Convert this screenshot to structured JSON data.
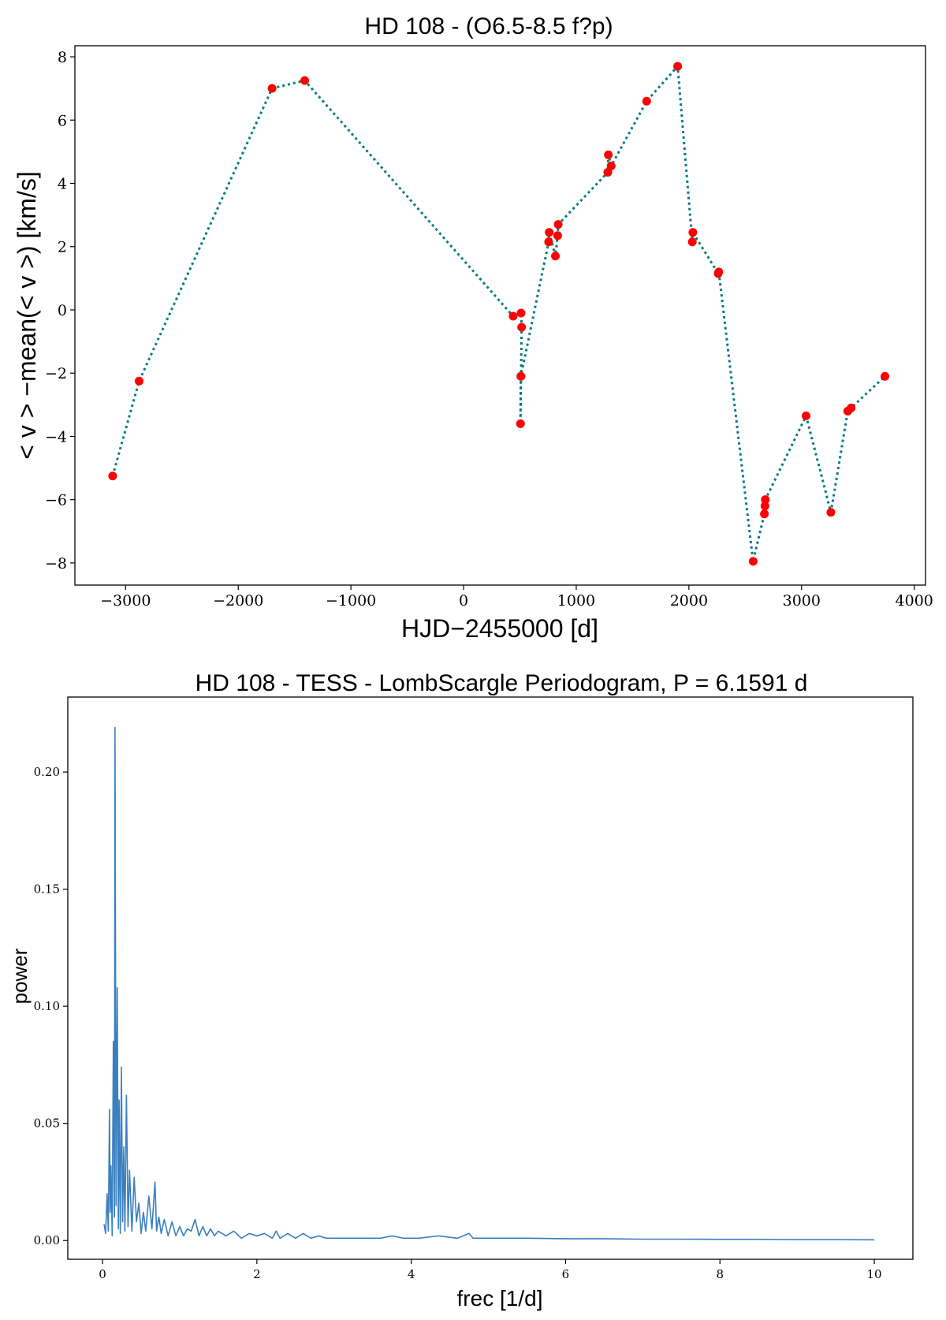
{
  "chart_data": [
    {
      "type": "line",
      "title": "HD 108 - (O6.5-8.5 f?p)",
      "xlabel": "HJD−2455000 [d]",
      "ylabel": "< v > −mean(< v >) [km/s]",
      "xlim": [
        -3450,
        4100
      ],
      "ylim": [
        -8.7,
        8.35
      ],
      "xticks": [
        -3000,
        -2000,
        -1000,
        0,
        1000,
        2000,
        3000,
        4000
      ],
      "xtick_labels": [
        "−3000",
        "−2000",
        "−1000",
        "0",
        "1000",
        "2000",
        "3000",
        "4000"
      ],
      "yticks": [
        -8,
        -6,
        -4,
        -2,
        0,
        2,
        4,
        6,
        8
      ],
      "ytick_labels": [
        "−8",
        "−6",
        "−4",
        "−2",
        "0",
        "2",
        "4",
        "6",
        "8"
      ],
      "grid": false,
      "line_style": "dotted",
      "line_color": "#007b82",
      "marker_color": "#ff0000",
      "series": [
        {
          "x": [
            -3115,
            -2880,
            -1700,
            -1410,
            440,
            510,
            515,
            510,
            505,
            508,
            755,
            760,
            815,
            835,
            840,
            1280,
            1285,
            1310,
            1625,
            1900,
            2030,
            2035,
            2260,
            2265,
            2570,
            2670,
            2675,
            2678,
            3040,
            3260,
            3410,
            3440,
            3740
          ],
          "y": [
            -5.25,
            -2.25,
            7.0,
            7.25,
            -0.2,
            -0.1,
            -0.55,
            -2.1,
            -3.6,
            -2.1,
            2.15,
            2.45,
            1.7,
            2.35,
            2.7,
            4.35,
            4.9,
            4.55,
            6.6,
            7.7,
            2.15,
            2.45,
            1.15,
            1.2,
            -7.95,
            -6.45,
            -6.2,
            -6.0,
            -3.35,
            -6.4,
            -3.2,
            -3.1,
            -2.1
          ]
        }
      ]
    },
    {
      "type": "line",
      "title": "HD 108 - TESS - LombScargle Periodogram, P = 6.1591 d",
      "xlabel": "frec [1/d]",
      "ylabel": "power",
      "xlim": [
        -0.45,
        10.5
      ],
      "ylim": [
        -0.008,
        0.232
      ],
      "xticks": [
        0,
        2,
        4,
        6,
        8,
        10
      ],
      "xtick_labels": [
        "0",
        "2",
        "4",
        "6",
        "8",
        "10"
      ],
      "yticks": [
        0.0,
        0.05,
        0.1,
        0.15,
        0.2
      ],
      "ytick_labels": [
        "0.00",
        "0.05",
        "0.10",
        "0.15",
        "0.20"
      ],
      "grid": false,
      "line_color": "#3a7fbf",
      "series": [
        {
          "x": [
            0.02,
            0.04,
            0.06,
            0.075,
            0.09,
            0.1,
            0.11,
            0.125,
            0.14,
            0.155,
            0.162,
            0.175,
            0.19,
            0.205,
            0.215,
            0.23,
            0.245,
            0.26,
            0.275,
            0.29,
            0.31,
            0.33,
            0.35,
            0.38,
            0.41,
            0.44,
            0.47,
            0.5,
            0.53,
            0.56,
            0.6,
            0.64,
            0.68,
            0.7,
            0.73,
            0.76,
            0.8,
            0.85,
            0.9,
            0.95,
            1.0,
            1.05,
            1.1,
            1.15,
            1.2,
            1.25,
            1.3,
            1.35,
            1.4,
            1.45,
            1.5,
            1.6,
            1.7,
            1.8,
            1.9,
            2.0,
            2.1,
            2.2,
            2.25,
            2.3,
            2.4,
            2.5,
            2.6,
            2.7,
            2.8,
            2.9,
            3.0,
            3.2,
            3.4,
            3.6,
            3.75,
            3.9,
            4.1,
            4.35,
            4.6,
            4.75,
            4.8,
            5.0,
            5.5,
            6.0,
            6.5,
            7.0,
            7.5,
            8.0,
            8.5,
            9.0,
            9.5,
            10.0
          ],
          "y": [
            0.007,
            0.003,
            0.02,
            0.004,
            0.056,
            0.012,
            0.032,
            0.002,
            0.085,
            0.01,
            0.219,
            0.015,
            0.108,
            0.005,
            0.06,
            0.003,
            0.074,
            0.008,
            0.04,
            0.004,
            0.062,
            0.006,
            0.03,
            0.004,
            0.027,
            0.008,
            0.016,
            0.003,
            0.012,
            0.004,
            0.019,
            0.005,
            0.025,
            0.004,
            0.01,
            0.003,
            0.009,
            0.002,
            0.008,
            0.002,
            0.006,
            0.002,
            0.005,
            0.004,
            0.009,
            0.002,
            0.006,
            0.002,
            0.005,
            0.002,
            0.004,
            0.002,
            0.004,
            0.001,
            0.003,
            0.002,
            0.003,
            0.001,
            0.004,
            0.001,
            0.003,
            0.001,
            0.003,
            0.001,
            0.002,
            0.001,
            0.001,
            0.001,
            0.001,
            0.001,
            0.002,
            0.001,
            0.001,
            0.002,
            0.001,
            0.003,
            0.001,
            0.001,
            0.001,
            0.0008,
            0.0008,
            0.0006,
            0.0006,
            0.0005,
            0.0005,
            0.0004,
            0.0004,
            0.0003
          ]
        }
      ]
    }
  ]
}
